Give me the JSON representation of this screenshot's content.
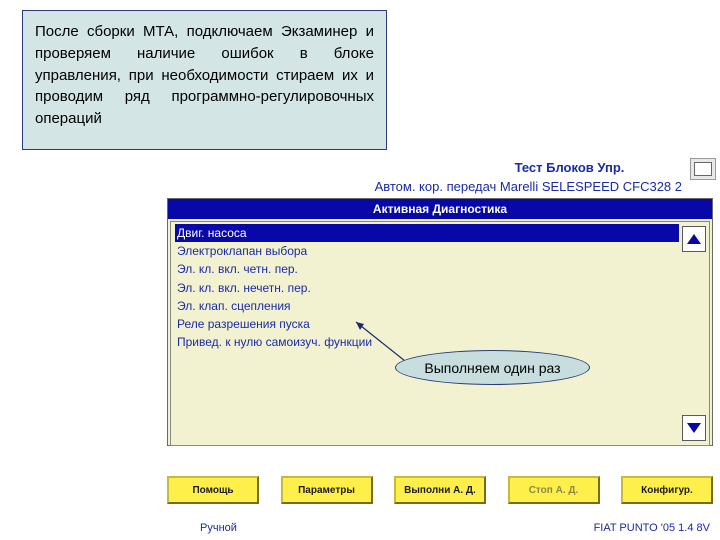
{
  "colors": {
    "note_bg": "#d4e5e5",
    "note_border": "#2a3a7a",
    "accent_blue": "#1a2aa8",
    "titlebar_bg": "#0808a8",
    "titlebar_fg": "#ffffff",
    "panel_bg": "#f2f2d0",
    "button_bg": "#ffef4a",
    "callout_bg": "#c8dede"
  },
  "note": {
    "text": "После сборки МТА, подключаем Экзаминер и проверяем наличие ошибок в блоке управления, при необходимости стираем их и проводим ряд программно-регулировочных операций"
  },
  "header": {
    "line1": "Тест Блоков Упр.",
    "line2": "Автом. кор. передач Marelli SELESPEED CFC328 2"
  },
  "diagnostics": {
    "title": "Активная Диагностика",
    "items": [
      {
        "label": "Двиг. насоса",
        "selected": true
      },
      {
        "label": "Электроклапан выбора",
        "selected": false
      },
      {
        "label": "Эл. кл. вкл. четн. пер.",
        "selected": false
      },
      {
        "label": "Эл. кл. вкл. нечетн. пер.",
        "selected": false
      },
      {
        "label": "Эл. клап. сцепления",
        "selected": false
      },
      {
        "label": "Реле разрешения пуска",
        "selected": false
      },
      {
        "label": "Привед. к нулю самоизуч. функции",
        "selected": false
      }
    ]
  },
  "callout": {
    "text": "Выполняем один раз"
  },
  "buttons": {
    "help": "Помощь",
    "params": "Параметры",
    "exec": "Выполни А. Д.",
    "stop": "Стоп А. Д.",
    "config": "Конфигур."
  },
  "footer": {
    "left": "Ручной",
    "right": "FIAT PUNTO '05 1.4 8V"
  }
}
